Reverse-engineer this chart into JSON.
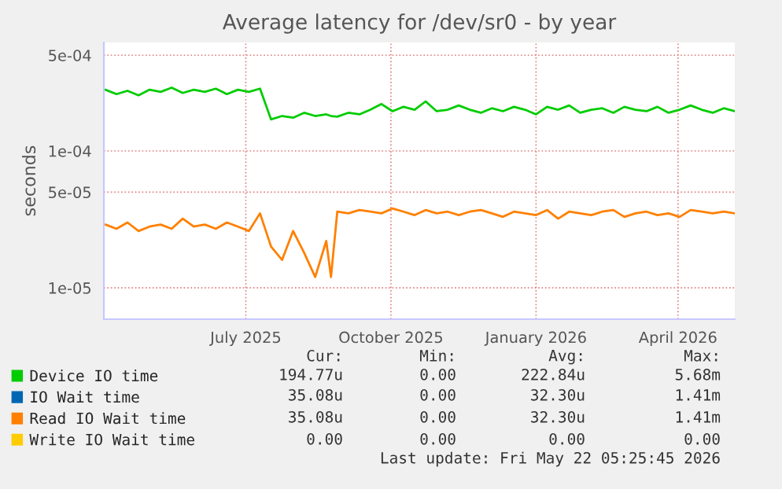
{
  "chart_data": {
    "type": "line",
    "title": "Average latency for /dev/sr0 - by year",
    "ylabel": "seconds",
    "x": [
      "2025-04-18",
      "2025-04-25",
      "2025-05-02",
      "2025-05-09",
      "2025-05-16",
      "2025-05-23",
      "2025-05-30",
      "2025-06-06",
      "2025-06-13",
      "2025-06-20",
      "2025-06-27",
      "2025-07-04",
      "2025-07-11",
      "2025-07-18",
      "2025-07-25",
      "2025-08-01",
      "2025-08-08",
      "2025-08-15",
      "2025-08-22",
      "2025-08-29",
      "2025-09-05",
      "2025-09-08",
      "2025-09-12",
      "2025-09-19",
      "2025-09-26",
      "2025-10-03",
      "2025-10-10",
      "2025-10-17",
      "2025-10-24",
      "2025-10-31",
      "2025-11-07",
      "2025-11-14",
      "2025-11-21",
      "2025-11-28",
      "2025-12-05",
      "2025-12-12",
      "2025-12-19",
      "2025-12-26",
      "2026-01-02",
      "2026-01-09",
      "2026-01-16",
      "2026-01-23",
      "2026-01-30",
      "2026-02-06",
      "2026-02-13",
      "2026-02-20",
      "2026-02-27",
      "2026-03-06",
      "2026-03-13",
      "2026-03-20",
      "2026-03-27",
      "2026-04-03",
      "2026-04-10",
      "2026-04-17",
      "2026-04-24",
      "2026-05-01",
      "2026-05-08",
      "2026-05-15",
      "2026-05-22"
    ],
    "series": [
      {
        "name": "Device IO time",
        "color": "#00cc00",
        "values": [
          0.00028,
          0.00026,
          0.000275,
          0.000255,
          0.00028,
          0.00027,
          0.00029,
          0.000265,
          0.00028,
          0.00027,
          0.000285,
          0.00026,
          0.00028,
          0.00027,
          0.000285,
          0.00017,
          0.00018,
          0.000175,
          0.00019,
          0.00018,
          0.000185,
          0.00018,
          0.000178,
          0.00019,
          0.000185,
          0.0002,
          0.00022,
          0.000195,
          0.00021,
          0.0002,
          0.00023,
          0.000195,
          0.0002,
          0.000215,
          0.0002,
          0.00019,
          0.000205,
          0.000195,
          0.00021,
          0.0002,
          0.000185,
          0.00021,
          0.0002,
          0.000215,
          0.00019,
          0.0002,
          0.000205,
          0.00019,
          0.00021,
          0.0002,
          0.000195,
          0.00021,
          0.00019,
          0.0002,
          0.000215,
          0.0002,
          0.00019,
          0.000205,
          0.000195
        ]
      },
      {
        "name": "IO Wait time",
        "color": "#0066b3",
        "values": [
          null,
          null,
          null,
          null,
          null,
          null,
          null,
          null,
          null,
          null,
          null,
          null,
          null,
          null,
          null,
          null,
          null,
          null,
          null,
          null,
          null,
          null,
          null,
          null,
          null,
          null,
          null,
          null,
          null,
          null,
          null,
          null,
          null,
          null,
          null,
          null,
          null,
          null,
          null,
          null,
          null,
          null,
          null,
          null,
          null,
          null,
          null,
          null,
          null,
          null,
          null,
          null,
          null,
          null,
          null,
          null,
          null,
          null,
          null
        ]
      },
      {
        "name": "Read IO Wait time",
        "color": "#ff8000",
        "values": [
          2.9e-05,
          2.7e-05,
          3e-05,
          2.6e-05,
          2.8e-05,
          2.9e-05,
          2.7e-05,
          3.2e-05,
          2.8e-05,
          2.9e-05,
          2.7e-05,
          3e-05,
          2.8e-05,
          2.6e-05,
          3.5e-05,
          2e-05,
          1.6e-05,
          2.6e-05,
          1.8e-05,
          1.2e-05,
          2.2e-05,
          1.2e-05,
          3.6e-05,
          3.5e-05,
          3.7e-05,
          3.6e-05,
          3.5e-05,
          3.8e-05,
          3.6e-05,
          3.4e-05,
          3.7e-05,
          3.5e-05,
          3.6e-05,
          3.4e-05,
          3.6e-05,
          3.7e-05,
          3.5e-05,
          3.3e-05,
          3.6e-05,
          3.5e-05,
          3.4e-05,
          3.7e-05,
          3.2e-05,
          3.6e-05,
          3.5e-05,
          3.4e-05,
          3.6e-05,
          3.7e-05,
          3.3e-05,
          3.5e-05,
          3.6e-05,
          3.4e-05,
          3.5e-05,
          3.3e-05,
          3.7e-05,
          3.6e-05,
          3.5e-05,
          3.6e-05,
          3.5e-05
        ]
      },
      {
        "name": "Write IO Wait time",
        "color": "#ffcc00",
        "values": [
          null,
          null,
          null,
          null,
          null,
          null,
          null,
          null,
          null,
          null,
          null,
          null,
          null,
          null,
          null,
          null,
          null,
          null,
          null,
          null,
          null,
          null,
          null,
          null,
          null,
          null,
          null,
          null,
          null,
          null,
          null,
          null,
          null,
          null,
          null,
          null,
          null,
          null,
          null,
          null,
          null,
          null,
          null,
          null,
          null,
          null,
          null,
          null,
          null,
          null,
          null,
          null,
          null,
          null,
          null,
          null,
          null,
          null,
          null
        ]
      }
    ],
    "log": "y",
    "xlim": [
      "2025-04-17",
      "2026-05-22"
    ],
    "xticks": [
      {
        "value": "2025-07-16",
        "label": "July 2025"
      },
      {
        "value": "2025-10-16",
        "label": "October 2025"
      },
      {
        "value": "2026-01-16",
        "label": "January 2026"
      },
      {
        "value": "2026-04-16",
        "label": "April 2026"
      }
    ],
    "ylim": [
      5.9e-06,
      0.00062
    ],
    "yticks": [
      {
        "value": 1e-05,
        "label": "1e-05"
      },
      {
        "value": 5e-05,
        "label": "5e-05"
      },
      {
        "value": 0.0001,
        "label": "1e-04"
      },
      {
        "value": 0.0005,
        "label": "5e-04"
      }
    ],
    "grid": true,
    "legend": "bottom",
    "annotations": [
      "Cur:",
      "Min:",
      "Avg:",
      "Max:",
      "194.77u",
      "0.00",
      "222.84u",
      "5.68m",
      "35.08u",
      "0.00",
      "32.30u",
      "1.41m",
      "35.08u",
      "0.00",
      "32.30u",
      "1.41m",
      "0.00",
      "0.00",
      "0.00",
      "0.00",
      "Last update: Fri May 22 05:25:45 2026"
    ]
  }
}
